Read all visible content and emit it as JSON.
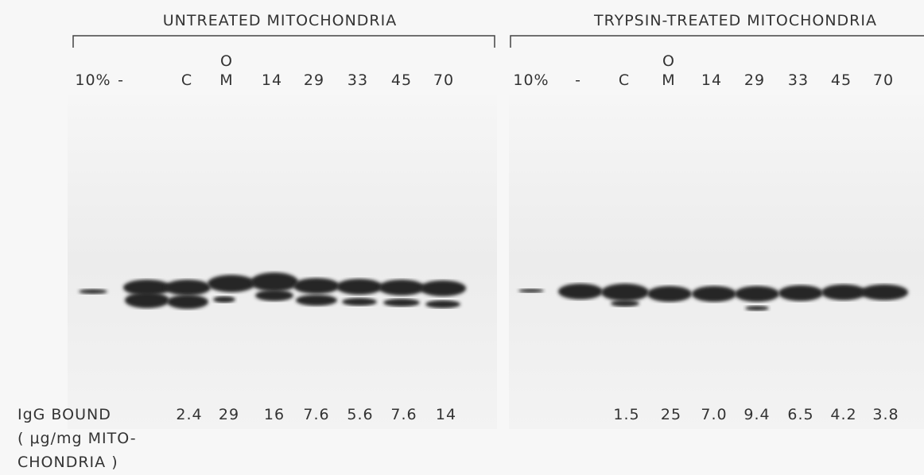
{
  "panels": [
    {
      "title": "UNTREATED MITOCHONDRIA",
      "lanes": [
        [
          "10%"
        ],
        [
          "-"
        ],
        [
          "C"
        ],
        [
          "O",
          "M"
        ],
        [
          "14"
        ],
        [
          "29"
        ],
        [
          "33"
        ],
        [
          "45"
        ],
        [
          "70"
        ]
      ],
      "igg_bound": [
        "2.4",
        "29",
        "16",
        "7.6",
        "5.6",
        "7.6",
        "14"
      ]
    },
    {
      "title": "TRYPSIN-TREATED MITOCHONDRIA",
      "lanes": [
        [
          "10%"
        ],
        [
          "-"
        ],
        [
          "C"
        ],
        [
          "O",
          "M"
        ],
        [
          "14"
        ],
        [
          "29"
        ],
        [
          "33"
        ],
        [
          "45"
        ],
        [
          "70"
        ]
      ],
      "igg_bound": [
        "1.5",
        "25",
        "7.0",
        "9.4",
        "6.5",
        "4.2",
        "3.8"
      ]
    }
  ],
  "row_label": [
    "IgG BOUND",
    "( μg/mg MITO-",
    "CHONDRIA )"
  ]
}
